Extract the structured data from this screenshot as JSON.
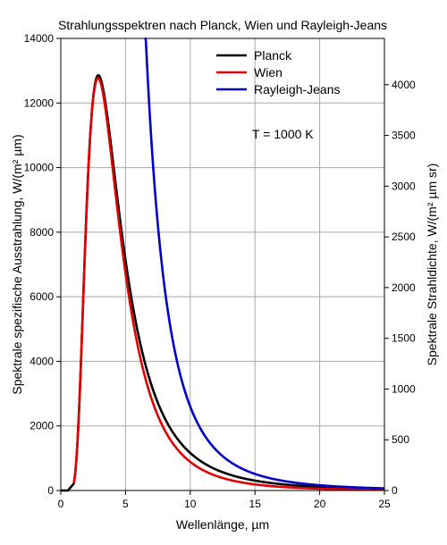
{
  "chart_data": {
    "type": "line",
    "title": "Strahlungsspektren nach Planck, Wien und Rayleigh-Jeans",
    "xlabel": "Wellenlänge, µm",
    "ylabel": "Spektrale spezifische Ausstrahlung, W/(m² µm)",
    "y2label": "Spektrale Strahldichte, W/(m² µm sr)",
    "xlim": [
      0,
      25
    ],
    "ylim": [
      0,
      14000
    ],
    "y2lim": [
      0,
      4456.3
    ],
    "xticks": [
      0,
      5,
      10,
      15,
      20,
      25
    ],
    "yticks": [
      0,
      2000,
      4000,
      6000,
      8000,
      10000,
      12000,
      14000
    ],
    "y2ticks": [
      0,
      500,
      1000,
      1500,
      2000,
      2500,
      3000,
      3500,
      4000
    ],
    "grid": true,
    "legend_position": "top-right",
    "annotation": "T = 1000 K",
    "temperature_K": 1000,
    "series": [
      {
        "name": "Planck",
        "color": "#000000",
        "x": [
          1,
          1.5,
          2,
          2.5,
          2.9,
          3.5,
          4,
          5,
          6,
          8,
          10,
          15,
          20,
          25
        ],
        "y": [
          373,
          3800,
          9090,
          12350,
          12860,
          12200,
          10880,
          7820,
          5430,
          2710,
          1480,
          370,
          138,
          63
        ]
      },
      {
        "name": "Wien",
        "color": "#e00000",
        "x": [
          1,
          1.5,
          2,
          2.5,
          2.9,
          3.5,
          4,
          5,
          6,
          8,
          10,
          15,
          20,
          25
        ],
        "y": [
          373,
          3790,
          9050,
          12220,
          12640,
          11830,
          10400,
          7120,
          4690,
          2050,
          974,
          193,
          58,
          22
        ]
      },
      {
        "name": "Rayleigh-Jeans",
        "color": "#0000cc",
        "x": [
          6.5,
          7,
          8,
          10,
          12,
          15,
          20,
          25
        ],
        "y": [
          14000,
          10280,
          7050,
          2888,
          1393,
          571,
          181,
          74
        ]
      }
    ]
  }
}
